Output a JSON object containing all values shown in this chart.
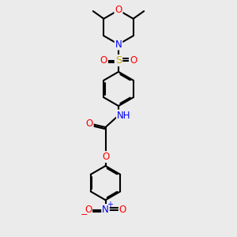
{
  "bg_color": "#ebebeb",
  "atom_colors": {
    "C": "#000000",
    "H": "#708090",
    "N": "#0000ff",
    "O": "#ff0000",
    "S": "#ccaa00"
  },
  "bond_color": "#000000",
  "bond_width": 1.5,
  "font_size": 8.5,
  "fig_width": 3.0,
  "fig_height": 3.0,
  "dpi": 100
}
